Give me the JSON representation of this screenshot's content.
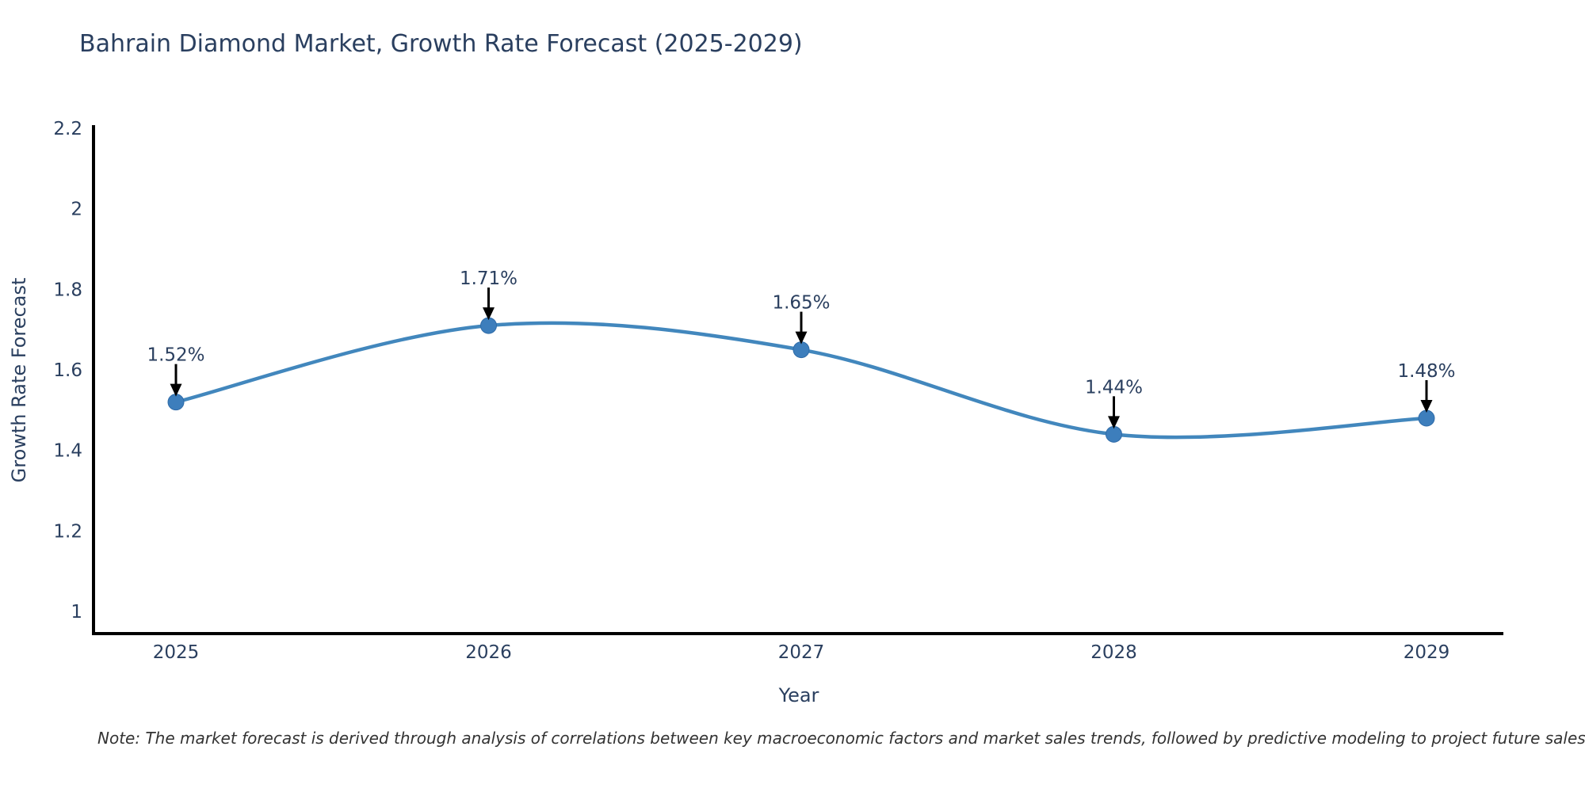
{
  "header": {
    "title": "Bahrain Diamond Market, Growth Rate Forecast (2025-2029)"
  },
  "chart_data": {
    "type": "line",
    "x": [
      2025,
      2026,
      2027,
      2028,
      2029
    ],
    "values": [
      1.52,
      1.71,
      1.65,
      1.44,
      1.48
    ],
    "point_labels": [
      "1.52%",
      "1.71%",
      "1.65%",
      "1.44%",
      "1.48%"
    ],
    "xtick_labels": [
      "2025",
      "2026",
      "2027",
      "2028",
      "2029"
    ],
    "ytick_values": [
      1,
      1.2,
      1.4,
      1.6,
      1.8,
      2,
      2.2
    ],
    "ytick_labels": [
      "1",
      "1.2",
      "1.4",
      "1.6",
      "1.8",
      "2",
      "2.2"
    ],
    "title": "Bahrain Diamond Market, Growth Rate Forecast (2025-2029)",
    "xlabel": "Year",
    "ylabel": "Growth Rate Forecast",
    "ylim": [
      1,
      2.2
    ],
    "grid": false,
    "legend": "none",
    "line_style": "spline",
    "colors": {
      "line": "#4287bd",
      "marker_fill": "#3d7ebc",
      "marker_edge": "#2f6ba8",
      "axis_line": "#000000",
      "arrow": "#000000",
      "text": "#2a3f5f"
    }
  },
  "footer": {
    "note": "Note: The market forecast is derived through analysis of correlations between key macroeconomic factors and market sales trends, followed by predictive modeling to project future sales"
  }
}
